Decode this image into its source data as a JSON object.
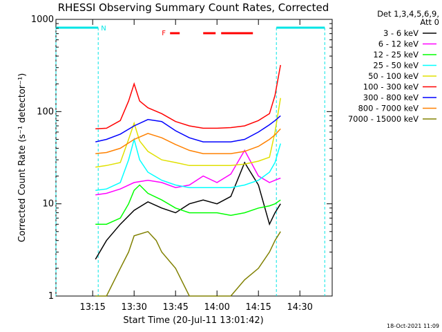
{
  "chart_data": {
    "type": "line",
    "title": "RHESSI Observing Summary Count Rates, Corrected",
    "xlabel": "Start Time (20-Jul-11 13:01:42)",
    "ylabel": "Corrected Count Rate (s⁻¹ detector⁻¹)",
    "y_scale": "log",
    "ylim": [
      1,
      1000
    ],
    "xlim": [
      "13:01:42",
      "14:41:42"
    ],
    "x_ticks": [
      "13:15",
      "13:30",
      "13:45",
      "14:00",
      "14:15",
      "14:30"
    ],
    "y_ticks": [
      "1",
      "10",
      "100",
      "1000"
    ],
    "legend_header": [
      "Det 1,3,4,5,6,9,",
      "Att 0"
    ],
    "legend_position": "right",
    "timestamp": "18-Oct-2021 11:09",
    "annotations": {
      "night_label": "N",
      "flare_label": "F",
      "night_color": "#00e5e5",
      "flare_color": "#ff0000"
    },
    "series": [
      {
        "name": "3 - 6 keV",
        "color": "#000000",
        "x": [
          "13:16",
          "13:20",
          "13:25",
          "13:30",
          "13:35",
          "13:40",
          "13:45",
          "13:50",
          "13:55",
          "14:00",
          "14:05",
          "14:10",
          "14:15",
          "14:19",
          "14:21",
          "14:23"
        ],
        "y": [
          2.5,
          4,
          6,
          8.5,
          10.5,
          9,
          8,
          10,
          11,
          10,
          12,
          28,
          16,
          6,
          8,
          10
        ]
      },
      {
        "name": "6 - 12 keV",
        "color": "#ff00ff",
        "x": [
          "13:16",
          "13:20",
          "13:25",
          "13:30",
          "13:35",
          "13:40",
          "13:45",
          "13:50",
          "13:55",
          "14:00",
          "14:05",
          "14:10",
          "14:15",
          "14:19",
          "14:21",
          "14:23"
        ],
        "y": [
          12.5,
          13,
          14.5,
          17,
          18,
          17,
          15,
          16,
          20,
          17,
          21,
          38,
          20,
          17,
          18,
          19
        ]
      },
      {
        "name": "12 - 25 keV",
        "color": "#00ff00",
        "x": [
          "13:16",
          "13:20",
          "13:25",
          "13:28",
          "13:30",
          "13:32",
          "13:35",
          "13:40",
          "13:45",
          "13:50",
          "13:55",
          "14:00",
          "14:05",
          "14:10",
          "14:15",
          "14:19",
          "14:21",
          "14:23"
        ],
        "y": [
          6,
          6,
          7,
          10,
          14,
          16,
          13,
          11,
          9,
          8,
          8,
          8,
          7.5,
          8,
          9,
          9.5,
          10,
          11
        ]
      },
      {
        "name": "25 - 50 keV",
        "color": "#00ffff",
        "x": [
          "13:16",
          "13:20",
          "13:25",
          "13:28",
          "13:30",
          "13:32",
          "13:35",
          "13:40",
          "13:45",
          "13:50",
          "13:55",
          "14:00",
          "14:05",
          "14:10",
          "14:15",
          "14:19",
          "14:21",
          "14:23"
        ],
        "y": [
          14,
          14.5,
          17,
          30,
          50,
          30,
          22,
          18,
          16,
          15,
          15,
          15,
          15,
          16,
          18,
          22,
          28,
          45
        ]
      },
      {
        "name": "50 - 100 keV",
        "color": "#e0e000",
        "x": [
          "13:16",
          "13:20",
          "13:25",
          "13:28",
          "13:30",
          "13:32",
          "13:35",
          "13:40",
          "13:45",
          "13:50",
          "13:55",
          "14:00",
          "14:05",
          "14:10",
          "14:15",
          "14:19",
          "14:21",
          "14:23"
        ],
        "y": [
          25,
          26,
          28,
          50,
          75,
          48,
          37,
          30,
          28,
          26,
          26,
          26,
          26,
          27,
          29,
          32,
          60,
          140
        ]
      },
      {
        "name": "100 - 300 keV",
        "color": "#ff0000",
        "x": [
          "13:16",
          "13:20",
          "13:25",
          "13:28",
          "13:30",
          "13:32",
          "13:35",
          "13:40",
          "13:45",
          "13:50",
          "13:55",
          "14:00",
          "14:05",
          "14:10",
          "14:15",
          "14:19",
          "14:21",
          "14:23"
        ],
        "y": [
          65,
          66,
          80,
          130,
          200,
          130,
          110,
          95,
          78,
          70,
          66,
          66,
          67,
          70,
          80,
          95,
          150,
          320
        ]
      },
      {
        "name": "300 - 800 keV",
        "color": "#0000ff",
        "x": [
          "13:16",
          "13:20",
          "13:25",
          "13:30",
          "13:35",
          "13:40",
          "13:45",
          "13:50",
          "13:55",
          "14:00",
          "14:05",
          "14:10",
          "14:15",
          "14:19",
          "14:21",
          "14:23"
        ],
        "y": [
          47,
          50,
          57,
          70,
          82,
          78,
          62,
          52,
          47,
          47,
          47,
          50,
          60,
          72,
          80,
          90
        ]
      },
      {
        "name": "800 - 7000 keV",
        "color": "#ff8000",
        "x": [
          "13:16",
          "13:20",
          "13:25",
          "13:30",
          "13:35",
          "13:40",
          "13:45",
          "13:50",
          "13:55",
          "14:00",
          "14:05",
          "14:10",
          "14:15",
          "14:19",
          "14:21",
          "14:23"
        ],
        "y": [
          35,
          36,
          40,
          50,
          58,
          52,
          44,
          38,
          35,
          35,
          35,
          37,
          42,
          50,
          56,
          65
        ]
      },
      {
        "name": "7000 - 15000 keV",
        "color": "#808000",
        "x": [
          "13:16",
          "13:20",
          "13:25",
          "13:28",
          "13:30",
          "13:35",
          "13:38",
          "13:40",
          "13:45",
          "13:50",
          "13:55",
          "14:00",
          "14:05",
          "14:10",
          "14:15",
          "14:19",
          "14:21",
          "14:23"
        ],
        "y": [
          1,
          1,
          2,
          3,
          4.5,
          5,
          4,
          3,
          2,
          1,
          1,
          1,
          1,
          1.5,
          2,
          3,
          4,
          5
        ]
      }
    ],
    "night_intervals": [
      [
        "13:01:42",
        "13:17:00"
      ],
      [
        "14:21:30",
        "14:39:00"
      ]
    ],
    "flare_intervals": [
      [
        "13:43:00",
        "13:46:30"
      ],
      [
        "13:55:00",
        "13:59:30"
      ],
      [
        "14:01:30",
        "14:13:00"
      ]
    ]
  }
}
